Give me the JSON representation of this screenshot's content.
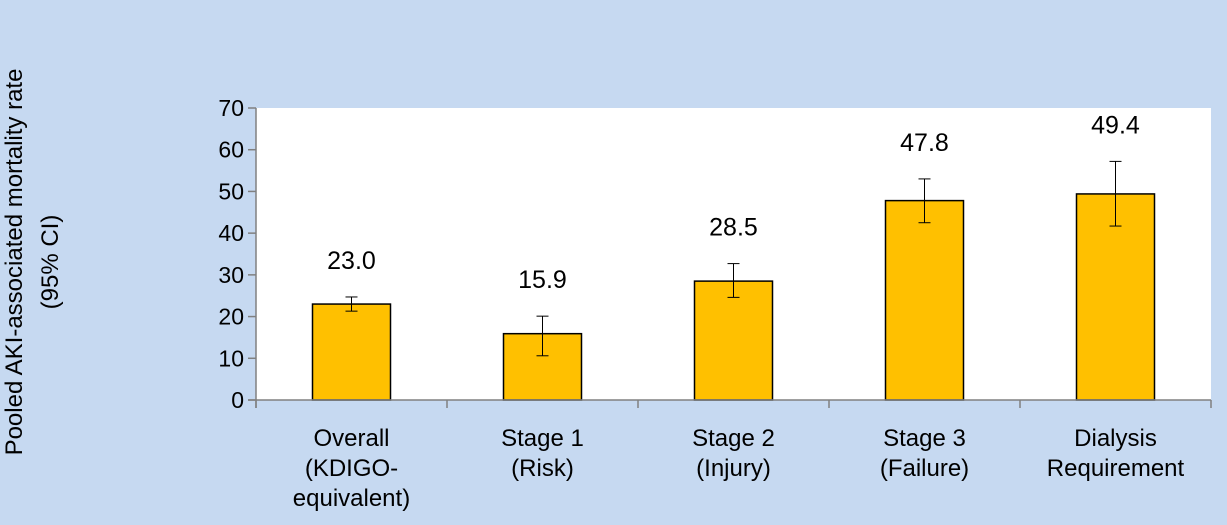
{
  "chart_data": {
    "type": "bar",
    "ylabel_lines": [
      "Pooled AKI-associated mortality rate",
      "(95% CI)"
    ],
    "xlabel": "",
    "categories": [
      [
        "Overall",
        "(KDIGO-",
        "equivalent)"
      ],
      [
        "Stage 1",
        "(Risk)"
      ],
      [
        "Stage 2",
        "(Injury)"
      ],
      [
        "Stage 3",
        "(Failure)"
      ],
      [
        "Dialysis",
        "Requirement"
      ]
    ],
    "values": [
      23.0,
      15.9,
      28.5,
      47.8,
      49.4
    ],
    "data_labels": [
      "23.0",
      "15.9",
      "28.5",
      "47.8",
      "49.4"
    ],
    "ci_lower": [
      21.3,
      10.6,
      24.6,
      42.5,
      41.7
    ],
    "ci_upper": [
      24.7,
      20.1,
      32.7,
      53.0,
      57.2
    ],
    "ylim": [
      0,
      70
    ],
    "yticks": [
      0,
      10,
      20,
      30,
      40,
      50,
      60,
      70
    ],
    "bar_color": "#ffc000",
    "plot_background": "#ffffff",
    "page_background": "#c6d9f1",
    "grid": false
  }
}
